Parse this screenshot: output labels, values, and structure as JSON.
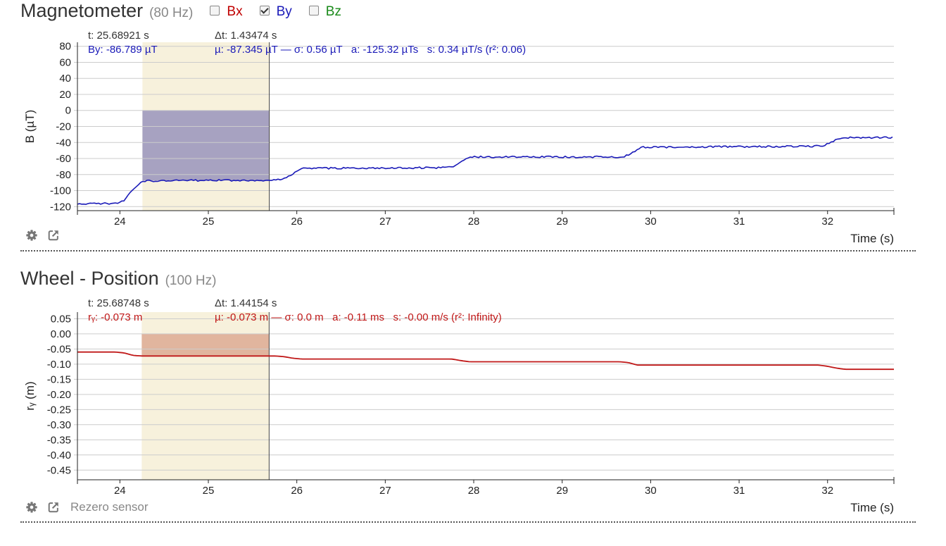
{
  "panels": [
    {
      "title": "Magnetometer",
      "rate": "(80 Hz)",
      "toggles": [
        {
          "label": "Bx",
          "checked": false,
          "color": "#c00000"
        },
        {
          "label": "By",
          "checked": true,
          "color": "#1a1ab8"
        },
        {
          "label": "Bz",
          "checked": false,
          "color": "#1a8a1a"
        }
      ],
      "readout": {
        "t": "t: 25.68921 s",
        "dt": "Δt: 1.43474 s",
        "value": "By: -86.789 µT",
        "stats": "µ: -87.345 µT — σ: 0.56 µT   a: -125.32 µTs   s: 0.34 µT/s (r²: 0.06)",
        "color": "#1a1ab8"
      }
    },
    {
      "title": "Wheel - Position",
      "rate": "(100 Hz)",
      "toggles": [],
      "readout": {
        "t": "t: 25.68748 s",
        "dt": "Δt: 1.44154 s",
        "value": "rᵧ: -0.073 m",
        "stats": "µ: -0.073 m — σ: 0.0 m   a: -0.11 ms   s: -0.00 m/s (r²: Infinity)",
        "color": "#c01818"
      },
      "rezero_label": "Rezero sensor"
    }
  ],
  "chart_data": [
    {
      "type": "line",
      "title": "Magnetometer",
      "xlabel": "Time (s)",
      "ylabel": "B (µT)",
      "xlim": [
        23.52,
        32.75
      ],
      "ylim": [
        -125,
        85
      ],
      "xticks": [
        24,
        25,
        26,
        27,
        28,
        29,
        30,
        31,
        32
      ],
      "yticks": [
        80,
        60,
        40,
        20,
        0,
        -20,
        -40,
        -60,
        -80,
        -100,
        -120
      ],
      "ytick_labels": [
        "80",
        "60",
        "40",
        "20",
        "0",
        "-20",
        "-40",
        "-60",
        "-80",
        "-100",
        "-120"
      ],
      "grid": true,
      "noisy": true,
      "selection": {
        "x_start": 24.255,
        "x_end": 25.689,
        "fill_color": "#f7f1dc",
        "mean": -87.345,
        "area_color": "#8c87b8"
      },
      "series": [
        {
          "name": "By",
          "color": "#1a1ab8",
          "x": [
            23.52,
            23.95,
            24.05,
            24.15,
            24.25,
            25.1,
            25.5,
            25.85,
            25.95,
            26.05,
            26.5,
            27.5,
            27.75,
            27.85,
            27.95,
            28.5,
            29.5,
            29.7,
            29.8,
            29.9,
            30.5,
            31.5,
            31.95,
            32.05,
            32.15,
            32.75
          ],
          "y": [
            -116,
            -116,
            -112,
            -98,
            -88,
            -87,
            -87.5,
            -86,
            -79,
            -72,
            -72,
            -71.5,
            -71,
            -64,
            -58,
            -58,
            -58,
            -58,
            -52,
            -46,
            -45.5,
            -45,
            -44.5,
            -39,
            -34,
            -34
          ]
        }
      ]
    },
    {
      "type": "line",
      "title": "Wheel - Position",
      "xlabel": "Time (s)",
      "ylabel": "rᵧ (m)",
      "xlim": [
        23.52,
        32.75
      ],
      "ylim": [
        -0.482,
        0.072
      ],
      "xticks": [
        24,
        25,
        26,
        27,
        28,
        29,
        30,
        31,
        32
      ],
      "yticks": [
        0.05,
        0.0,
        -0.05,
        -0.1,
        -0.15,
        -0.2,
        -0.25,
        -0.3,
        -0.35,
        -0.4,
        -0.45
      ],
      "ytick_labels": [
        "0.05",
        "0.00",
        "-0.05",
        "-0.10",
        "-0.15",
        "-0.20",
        "-0.25",
        "-0.30",
        "-0.35",
        "-0.40",
        "-0.45"
      ],
      "grid": true,
      "noisy": false,
      "selection": {
        "x_start": 24.247,
        "x_end": 25.687,
        "fill_color": "#f7f1dc",
        "mean": -0.073,
        "area_color": "#d9a089"
      },
      "series": [
        {
          "name": "rᵧ",
          "color": "#c01818",
          "x": [
            23.52,
            23.95,
            24.05,
            24.15,
            24.25,
            25.75,
            25.85,
            25.95,
            26.05,
            27.75,
            27.85,
            27.95,
            29.65,
            29.75,
            29.85,
            31.9,
            32.0,
            32.1,
            32.2,
            32.75
          ],
          "y": [
            -0.06,
            -0.06,
            -0.063,
            -0.071,
            -0.073,
            -0.073,
            -0.075,
            -0.08,
            -0.083,
            -0.083,
            -0.088,
            -0.092,
            -0.092,
            -0.095,
            -0.103,
            -0.103,
            -0.107,
            -0.113,
            -0.117,
            -0.117
          ]
        }
      ]
    }
  ]
}
